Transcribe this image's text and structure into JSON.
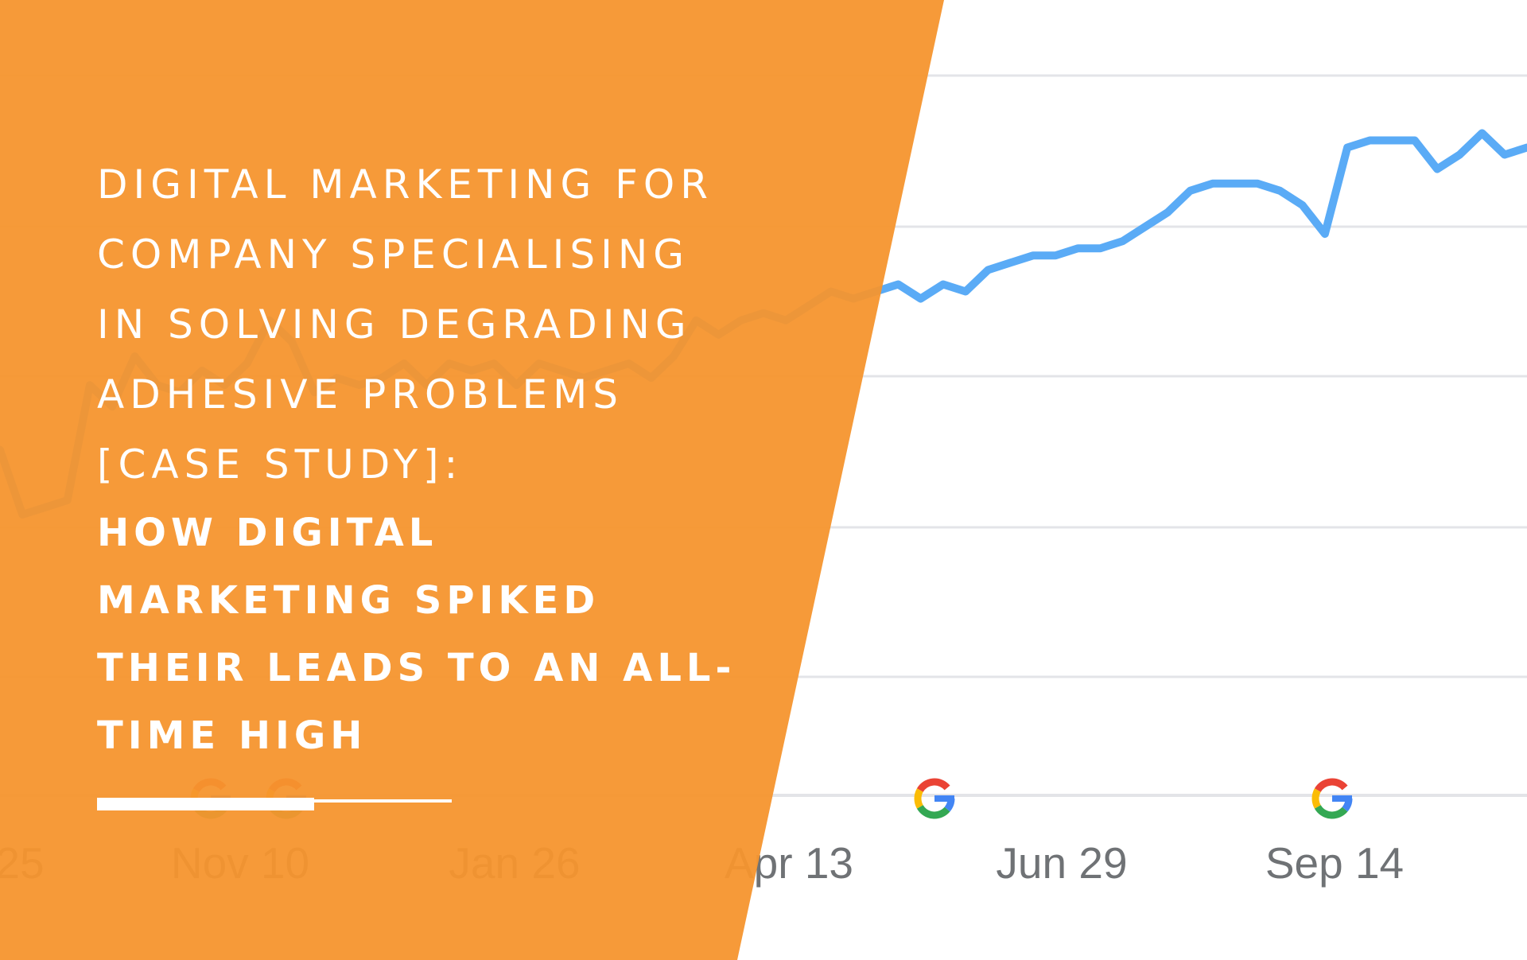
{
  "chart": {
    "x_tick_labels": [
      "25",
      "Nov 10",
      "Jan 26",
      "Apr 13",
      "Jun 29",
      "Sep 14"
    ],
    "gridlines": 5,
    "line_color": "#5aabf6",
    "grid_color": "#e3e4e8",
    "annotation_icons": [
      "google-g-icon",
      "google-g-icon",
      "google-g-icon",
      "google-g-icon"
    ],
    "series_values": [
      48,
      39,
      40,
      41,
      57,
      54,
      61,
      57,
      56,
      59,
      57,
      60,
      66,
      63,
      56,
      58,
      57,
      58,
      60,
      57,
      60,
      59,
      60,
      57,
      60,
      59,
      58,
      59,
      60,
      58,
      61,
      66,
      64,
      66,
      67,
      66,
      68,
      70,
      69,
      70,
      71,
      69,
      71,
      70,
      73,
      74,
      75,
      75,
      76,
      76,
      77,
      79,
      81,
      84,
      85,
      85,
      85,
      84,
      82,
      78,
      90,
      91,
      91,
      91,
      87,
      89,
      92,
      89,
      90
    ]
  },
  "headline": {
    "light_lines": [
      "DIGITAL MARKETING FOR",
      "COMPANY SPECIALISING",
      "IN SOLVING DEGRADING",
      "ADHESIVE PROBLEMS",
      "[CASE STUDY]:"
    ],
    "bold_lines": [
      "HOW DIGITAL",
      "MARKETING SPIKED",
      "THEIR LEADS TO AN ALL-",
      "TIME HIGH"
    ]
  },
  "colors": {
    "panel_orange": "#f5952e",
    "text": "#ffffff"
  }
}
